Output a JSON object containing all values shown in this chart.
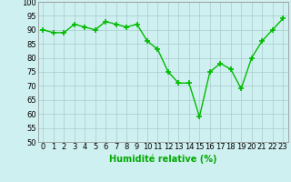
{
  "x": [
    0,
    1,
    2,
    3,
    4,
    5,
    6,
    7,
    8,
    9,
    10,
    11,
    12,
    13,
    14,
    15,
    16,
    17,
    18,
    19,
    20,
    21,
    22,
    23
  ],
  "y": [
    90,
    89,
    89,
    92,
    91,
    90,
    93,
    92,
    91,
    92,
    86,
    83,
    75,
    71,
    71,
    59,
    75,
    78,
    76,
    69,
    80,
    86,
    90,
    94
  ],
  "line_color": "#00bb00",
  "marker": "+",
  "marker_size": 4,
  "bg_color": "#cff0f0",
  "grid_color": "#aacccc",
  "xlabel": "Humidité relative (%)",
  "xlabel_color": "#00aa00",
  "ylim": [
    50,
    100
  ],
  "yticks": [
    50,
    55,
    60,
    65,
    70,
    75,
    80,
    85,
    90,
    95,
    100
  ],
  "xticks": [
    0,
    1,
    2,
    3,
    4,
    5,
    6,
    7,
    8,
    9,
    10,
    11,
    12,
    13,
    14,
    15,
    16,
    17,
    18,
    19,
    20,
    21,
    22,
    23
  ],
  "tick_fontsize": 6,
  "xlabel_fontsize": 7,
  "line_width": 1.0
}
